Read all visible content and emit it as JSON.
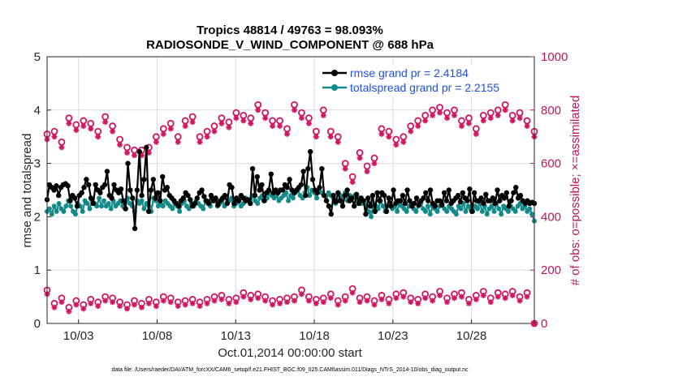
{
  "chart_data": {
    "type": "line",
    "title_line1": "Tropics 48814 / 49763 = 98.093%",
    "title_line2": "RADIOSONDE_V_WIND_COMPONENT @ 688 hPa",
    "xlabel": "Oct.01,2014 00:00:00 start",
    "ylabel": "rmse and totalspread",
    "ylabel_right": "# of obs: o=possible; ×=assimilated",
    "footnote": "data file: /Users/raeder/DAI/ATM_forcXX/CAM6_setup/f.e21.FHIST_BGC.f09_025.CAM6assim.011/Diags_NTrS_2014-10/obs_diag_output.nc",
    "xlim": [
      1,
      32
    ],
    "ylim": [
      0,
      5
    ],
    "ylim_right": [
      0,
      1000
    ],
    "x_ticks": [
      3,
      8,
      13,
      18,
      23,
      28
    ],
    "x_tick_labels": [
      "10/03",
      "10/08",
      "10/13",
      "10/18",
      "10/23",
      "10/28"
    ],
    "y_ticks": [
      "0",
      "1",
      "2",
      "3",
      "4",
      "5"
    ],
    "y_ticks_right": [
      "0",
      "200",
      "400",
      "600",
      "800",
      "1000"
    ],
    "colors": {
      "rmse": "#000000",
      "spread": "#138a8a",
      "obs": "#d01560",
      "legend_text": "#1f50e6",
      "right_axis": "#c0135a"
    },
    "series": [
      {
        "name": "rmse grand pr = 2.4184",
        "values": [
          2.32,
          2.6,
          2.55,
          2.5,
          2.58,
          2.4,
          2.55,
          2.6,
          2.62,
          2.58,
          2.3,
          2.4,
          2.35,
          2.2,
          2.4,
          2.45,
          2.55,
          2.7,
          2.6,
          2.35,
          2.25,
          2.6,
          2.5,
          2.45,
          2.55,
          2.6,
          2.85,
          2.4,
          2.35,
          2.6,
          2.5,
          2.45,
          2.52,
          2.3,
          2.15,
          3.0,
          2.5,
          2.35,
          1.78,
          2.5,
          3.22,
          2.4,
          2.7,
          3.3,
          2.1,
          2.5,
          2.7,
          2.35,
          2.45,
          2.3,
          2.75,
          2.5,
          2.55,
          2.4,
          2.35,
          2.3,
          2.25,
          2.2,
          2.3,
          2.35,
          2.45,
          2.4,
          2.32,
          2.2,
          2.25,
          2.35,
          2.45,
          2.5,
          2.38,
          2.3,
          2.25,
          2.4,
          2.3,
          2.35,
          2.22,
          2.3,
          2.35,
          2.4,
          2.25,
          2.6,
          2.55,
          2.25,
          2.35,
          2.3,
          2.4,
          2.35,
          2.3,
          2.32,
          2.25,
          2.9,
          2.4,
          2.75,
          2.5,
          2.6,
          2.3,
          2.45,
          2.5,
          2.8,
          2.45,
          2.5,
          2.45,
          2.5,
          2.5,
          2.6,
          2.55,
          2.7,
          2.5,
          2.45,
          2.5,
          2.55,
          2.6,
          2.85,
          2.4,
          2.9,
          3.22,
          2.7,
          2.5,
          2.45,
          2.55,
          2.9,
          2.4,
          2.3,
          2.2,
          2.05,
          2.4,
          2.28,
          2.45,
          2.3,
          2.2,
          2.4,
          2.5,
          2.3,
          2.35,
          2.2,
          2.42,
          2.25,
          2.35,
          2.3,
          2.05,
          2.35,
          2.2,
          2.4,
          2.1,
          2.45,
          2.3,
          2.45,
          2.4,
          2.1,
          2.35,
          2.2,
          2.5,
          2.25,
          2.3,
          2.3,
          2.4,
          2.25,
          2.5,
          2.3,
          2.2,
          2.25,
          2.35,
          2.22,
          2.3,
          2.35,
          2.45,
          2.3,
          2.5,
          2.25,
          2.2,
          2.3,
          2.3,
          2.22,
          2.45,
          2.3,
          2.5,
          2.25,
          2.3,
          2.35,
          2.4,
          2.28,
          2.45,
          2.35,
          2.3,
          2.52,
          2.1,
          2.45,
          2.3,
          2.3,
          2.35,
          2.25,
          2.42,
          2.3,
          2.3,
          2.35,
          2.25,
          2.5,
          2.3,
          2.4,
          2.35,
          2.45,
          2.2,
          2.3,
          2.45,
          2.55,
          2.35,
          2.4,
          2.3,
          2.25,
          2.3,
          2.25,
          2.27,
          2.25
        ]
      },
      {
        "name": "totalspread grand pr = 2.2155",
        "values": [
          2.1,
          2.15,
          2.05,
          2.2,
          2.1,
          2.25,
          2.15,
          2.1,
          2.2,
          2.3,
          2.2,
          2.1,
          2.05,
          2.25,
          2.2,
          2.1,
          2.3,
          2.25,
          2.15,
          2.3,
          2.25,
          2.2,
          2.35,
          2.2,
          2.3,
          2.2,
          2.25,
          2.15,
          2.3,
          2.2,
          2.25,
          2.3,
          2.2,
          2.15,
          2.35,
          2.25,
          2.2,
          2.1,
          2.3,
          2.25,
          2.3,
          2.15,
          2.25,
          2.2,
          2.1,
          2.35,
          2.3,
          2.2,
          2.25,
          2.2,
          2.3,
          2.25,
          2.2,
          2.15,
          2.25,
          2.2,
          2.1,
          2.25,
          2.3,
          2.2,
          2.15,
          2.25,
          2.2,
          2.3,
          2.25,
          2.2,
          2.15,
          2.3,
          2.25,
          2.2,
          2.35,
          2.3,
          2.2,
          2.25,
          2.3,
          2.2,
          2.25,
          2.3,
          2.35,
          2.2,
          2.25,
          2.3,
          2.2,
          2.25,
          2.35,
          2.3,
          2.25,
          2.4,
          2.3,
          2.25,
          2.35,
          2.4,
          2.3,
          2.35,
          2.45,
          2.4,
          2.35,
          2.4,
          2.3,
          2.35,
          2.4,
          2.45,
          2.3,
          2.4,
          2.35,
          2.45,
          2.5,
          2.4,
          2.35,
          2.45,
          2.55,
          2.4,
          2.5,
          2.45,
          2.35,
          2.5,
          2.45,
          2.4,
          2.3,
          2.45,
          2.4,
          2.35,
          2.25,
          2.3,
          2.4,
          2.35,
          2.45,
          2.3,
          2.4,
          2.35,
          2.4,
          2.3,
          2.35,
          2.25,
          2.3,
          2.2,
          2.1,
          2.0,
          2.25,
          2.2,
          2.15,
          2.3,
          2.2,
          2.1,
          2.2,
          2.25,
          2.15,
          2.2,
          2.1,
          2.25,
          2.2,
          2.15,
          2.1,
          2.2,
          2.25,
          2.15,
          2.1,
          2.2,
          2.25,
          2.15,
          2.1,
          2.2,
          2.05,
          2.2,
          2.15,
          2.1,
          2.2,
          2.25,
          2.15,
          2.1,
          2.2,
          2.15,
          2.1,
          2.05,
          2.2,
          2.15,
          2.25,
          2.1,
          2.2,
          2.15,
          2.1,
          2.2,
          2.15,
          2.25,
          2.1,
          2.2,
          2.05,
          2.15,
          2.2,
          2.1,
          2.25,
          2.15,
          2.05,
          2.2,
          2.15,
          2.1,
          2.2,
          2.15,
          2.1,
          2.2,
          2.25,
          2.15,
          2.2,
          2.1,
          2.15,
          2.05,
          1.92
        ]
      }
    ],
    "obs_possible_upper": [
      710,
      720,
      680,
      770,
      745,
      760,
      750,
      720,
      775,
      740,
      690,
      660,
      650,
      650,
      660,
      700,
      730,
      750,
      700,
      760,
      775,
      700,
      720,
      740,
      770,
      755,
      790,
      780,
      770,
      820,
      790,
      760,
      760,
      730,
      820,
      790,
      770,
      720,
      800,
      720,
      700,
      600,
      550,
      640,
      590,
      620,
      730,
      720,
      690,
      700,
      740,
      760,
      780,
      800,
      810,
      790,
      800,
      760,
      770,
      730,
      780,
      790,
      800,
      820,
      780,
      790,
      760,
      720
    ],
    "obs_assimilated_upper": [
      690,
      700,
      660,
      750,
      725,
      740,
      730,
      700,
      755,
      720,
      670,
      640,
      630,
      630,
      640,
      680,
      710,
      730,
      680,
      740,
      755,
      680,
      700,
      720,
      750,
      735,
      770,
      760,
      750,
      800,
      770,
      740,
      740,
      710,
      800,
      770,
      750,
      700,
      780,
      700,
      680,
      580,
      530,
      620,
      570,
      600,
      710,
      700,
      670,
      680,
      720,
      740,
      760,
      780,
      790,
      770,
      780,
      740,
      750,
      710,
      760,
      770,
      780,
      800,
      760,
      770,
      740,
      700
    ],
    "obs_possible_lower": [
      125,
      75,
      95,
      60,
      85,
      70,
      90,
      80,
      100,
      95,
      80,
      70,
      85,
      75,
      90,
      80,
      100,
      95,
      80,
      85,
      90,
      80,
      90,
      100,
      105,
      90,
      95,
      115,
      105,
      110,
      100,
      85,
      90,
      95,
      100,
      125,
      100,
      90,
      95,
      110,
      85,
      100,
      130,
      95,
      100,
      85,
      105,
      90,
      110,
      115,
      95,
      90,
      110,
      100,
      120,
      95,
      110,
      115,
      90,
      105,
      120,
      95,
      115,
      110,
      120,
      100,
      115,
      0
    ],
    "obs_assimilated_lower": [
      110,
      60,
      80,
      45,
      70,
      55,
      75,
      65,
      85,
      80,
      65,
      55,
      70,
      60,
      75,
      65,
      85,
      80,
      65,
      70,
      75,
      65,
      75,
      85,
      90,
      75,
      80,
      100,
      90,
      95,
      85,
      70,
      75,
      80,
      85,
      110,
      85,
      75,
      80,
      95,
      70,
      85,
      115,
      80,
      85,
      70,
      90,
      75,
      95,
      100,
      80,
      75,
      95,
      85,
      105,
      80,
      95,
      100,
      75,
      90,
      105,
      80,
      100,
      95,
      105,
      85,
      100,
      0
    ]
  }
}
